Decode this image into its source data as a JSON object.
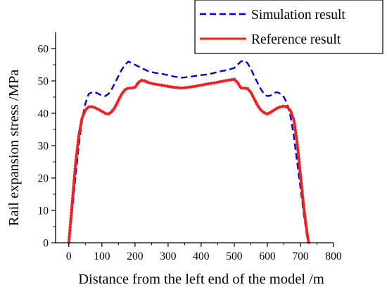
{
  "chart_data": {
    "type": "line",
    "title": "",
    "xlabel": "Distance from the left end of the model /m",
    "ylabel": "Rail expansion stress /MPa",
    "xlim": [
      -40,
      800
    ],
    "ylim": [
      0,
      65
    ],
    "xticks": [
      0,
      100,
      200,
      300,
      400,
      500,
      600,
      700,
      800
    ],
    "yticks": [
      0,
      10,
      20,
      30,
      40,
      50,
      60
    ],
    "grid": false,
    "legend_position": "top-right",
    "series": [
      {
        "name": "Simulation result",
        "color": "#0000dd",
        "dash": "dashed",
        "x": [
          0,
          10,
          20,
          30,
          40,
          50,
          60,
          70,
          80,
          90,
          100,
          110,
          120,
          130,
          140,
          150,
          160,
          170,
          180,
          190,
          200,
          220,
          240,
          260,
          280,
          300,
          320,
          340,
          360,
          380,
          400,
          420,
          440,
          460,
          480,
          500,
          510,
          520,
          530,
          540,
          550,
          560,
          570,
          580,
          590,
          600,
          610,
          620,
          630,
          640,
          650,
          660,
          670,
          680,
          690,
          700,
          710,
          720,
          725
        ],
        "y": [
          0,
          10,
          20,
          30,
          38,
          43,
          46,
          46.5,
          46.5,
          46,
          45.5,
          45.3,
          46,
          47.5,
          49.5,
          51.5,
          53.5,
          55,
          56,
          55.5,
          55,
          54,
          53,
          52.5,
          52.2,
          51.8,
          51.3,
          51,
          51.2,
          51.5,
          51.8,
          52,
          52.5,
          53,
          53.4,
          54,
          55,
          56,
          56.3,
          55.5,
          53.8,
          51.5,
          49.5,
          47.5,
          46,
          45.3,
          45.5,
          46.3,
          46.5,
          46,
          45,
          43,
          39,
          33,
          25,
          17,
          9,
          2,
          0
        ]
      },
      {
        "name": "Reference result",
        "color": "#ee2020",
        "dash": "solid",
        "x": [
          0,
          10,
          20,
          30,
          40,
          50,
          60,
          70,
          80,
          90,
          100,
          110,
          120,
          130,
          140,
          150,
          160,
          170,
          180,
          190,
          200,
          210,
          220,
          230,
          240,
          260,
          280,
          300,
          320,
          340,
          360,
          380,
          400,
          420,
          440,
          460,
          480,
          500,
          510,
          520,
          530,
          540,
          550,
          560,
          570,
          580,
          590,
          600,
          610,
          620,
          630,
          640,
          650,
          660,
          670,
          680,
          690,
          700,
          710,
          720,
          725
        ],
        "y": [
          0,
          12,
          24,
          33,
          38.5,
          41,
          42,
          42,
          41.7,
          41.2,
          40.6,
          40,
          39.8,
          40.5,
          42,
          44,
          46,
          47.3,
          47.8,
          47.8,
          48,
          49.5,
          50.2,
          50,
          49.5,
          49,
          48.7,
          48.3,
          48,
          47.8,
          48,
          48.3,
          48.7,
          49.1,
          49.4,
          49.8,
          50.2,
          50.5,
          49.5,
          47.8,
          47.8,
          47.6,
          46.5,
          44.5,
          42.5,
          41,
          40.2,
          39.8,
          40.3,
          41,
          41.6,
          42,
          42.2,
          42,
          40.8,
          38,
          31,
          21,
          11,
          3,
          0
        ]
      }
    ]
  }
}
